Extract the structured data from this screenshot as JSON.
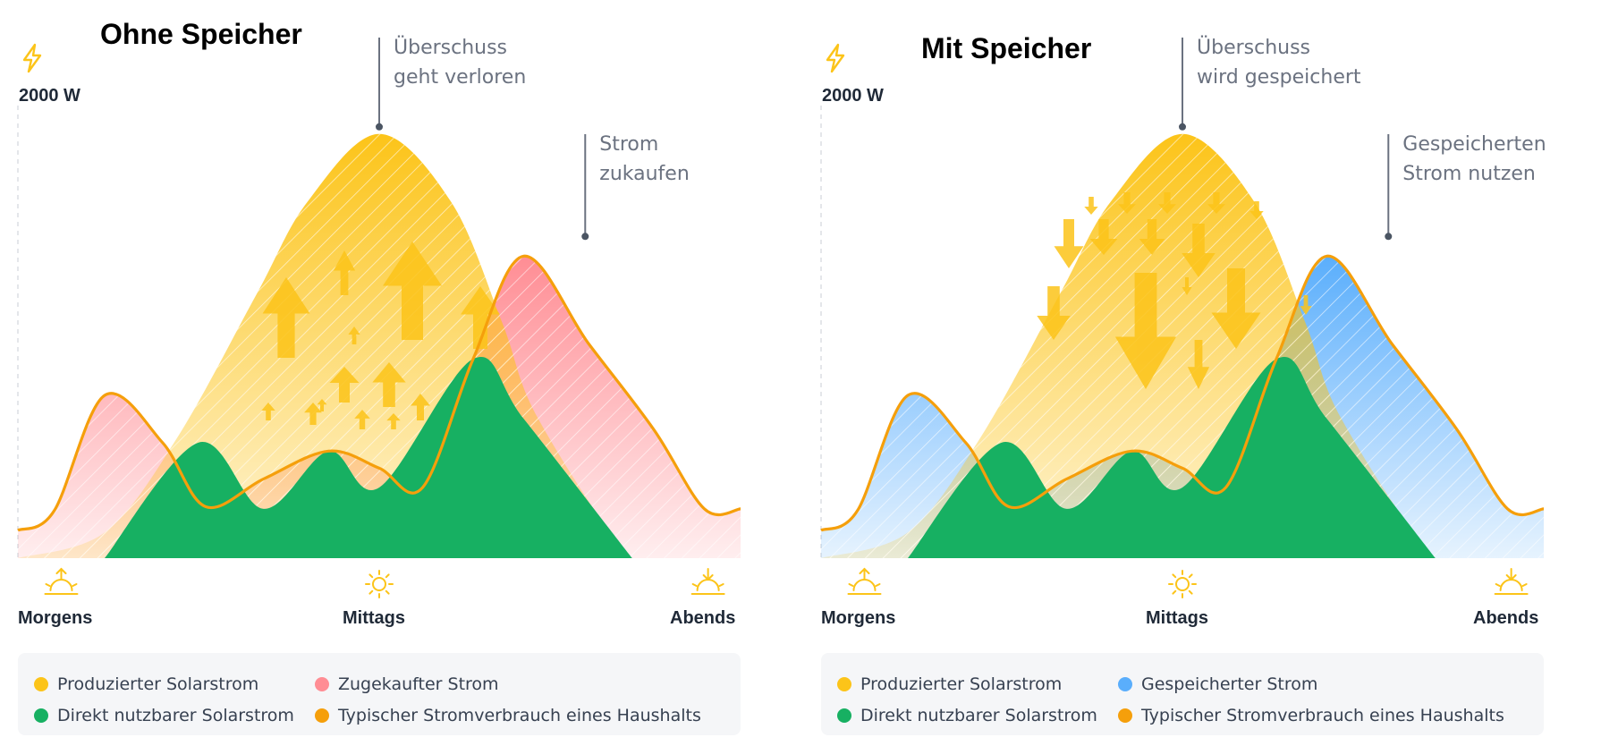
{
  "colors": {
    "solar": "#fcc419",
    "direct": "#17b062",
    "bought": "#ff8d94",
    "stored": "#5aaefc",
    "consumption": "#f59f0b",
    "annotation": "#6b7280"
  },
  "chart_data": [
    {
      "type": "area",
      "title": "Ohne Speicher",
      "ylabel": "2000 W",
      "y_max_label": "2000 W",
      "ylim": [
        0,
        2000
      ],
      "x_labels": [
        "Morgens",
        "Mittags",
        "Abends"
      ],
      "icons": [
        "sunrise-icon",
        "sun-icon",
        "sunset-icon"
      ],
      "annotations": [
        {
          "lines": [
            "Überschuss",
            "geht verloren"
          ]
        },
        {
          "lines": [
            "Strom",
            "zukaufen"
          ]
        }
      ],
      "surplus_arrow_direction": "up",
      "legend": [
        {
          "label": "Produzierter Solarstrom",
          "color": "#fcc419"
        },
        {
          "label": "Zugekaufter Strom",
          "color": "#ff8d94"
        },
        {
          "label": "Direkt nutzbarer Solarstrom",
          "color": "#17b062"
        },
        {
          "label": "Typischer Stromverbrauch eines Haushalts",
          "color": "#f59f0b"
        }
      ],
      "series": [
        {
          "name": "Produzierter Solarstrom",
          "x": [
            0,
            0.12,
            0.22,
            0.33,
            0.4,
            0.5,
            0.6,
            0.67,
            0.72,
            0.85,
            0.92
          ],
          "values": [
            0,
            120,
            560,
            1230,
            1660,
            1980,
            1660,
            1100,
            650,
            0,
            0
          ]
        },
        {
          "name": "Typischer Stromverbrauch eines Haushalts",
          "x": [
            0,
            0.05,
            0.12,
            0.2,
            0.26,
            0.34,
            0.43,
            0.5,
            0.56,
            0.63,
            0.7,
            0.79,
            0.88,
            0.95,
            1
          ],
          "values": [
            130,
            220,
            760,
            540,
            240,
            370,
            500,
            420,
            330,
            930,
            1410,
            1000,
            600,
            230,
            230
          ]
        },
        {
          "name": "Direkt nutzbarer Solarstrom",
          "x": [
            0.12,
            0.25,
            0.34,
            0.43,
            0.5,
            0.63,
            0.7,
            0.85
          ],
          "values": [
            0,
            540,
            230,
            500,
            330,
            930,
            650,
            0
          ]
        },
        {
          "name": "Zugekaufter Strom",
          "x": [
            0,
            0.12,
            0.22,
            0.7,
            0.79,
            0.95,
            1
          ],
          "values": [
            130,
            760,
            540,
            1410,
            1000,
            230,
            230
          ]
        }
      ]
    },
    {
      "type": "area",
      "title": "Mit Speicher",
      "ylabel": "2000 W",
      "y_max_label": "2000 W",
      "ylim": [
        0,
        2000
      ],
      "x_labels": [
        "Morgens",
        "Mittags",
        "Abends"
      ],
      "icons": [
        "sunrise-icon",
        "sun-icon",
        "sunset-icon"
      ],
      "annotations": [
        {
          "lines": [
            "Überschuss",
            "wird gespeichert"
          ]
        },
        {
          "lines": [
            "Gespeicherten",
            "Strom nutzen"
          ]
        }
      ],
      "surplus_arrow_direction": "down",
      "legend": [
        {
          "label": "Produzierter Solarstrom",
          "color": "#fcc419"
        },
        {
          "label": "Gespeicherter Strom",
          "color": "#5aaefc"
        },
        {
          "label": "Direkt nutzbarer Solarstrom",
          "color": "#17b062"
        },
        {
          "label": "Typischer Stromverbrauch eines Haushalts",
          "color": "#f59f0b"
        }
      ],
      "series": [
        {
          "name": "Produzierter Solarstrom",
          "x": [
            0,
            0.12,
            0.22,
            0.33,
            0.4,
            0.5,
            0.6,
            0.67,
            0.72,
            0.85,
            0.92
          ],
          "values": [
            0,
            120,
            560,
            1230,
            1660,
            1980,
            1660,
            1100,
            650,
            0,
            0
          ]
        },
        {
          "name": "Typischer Stromverbrauch eines Haushalts",
          "x": [
            0,
            0.05,
            0.12,
            0.2,
            0.26,
            0.34,
            0.43,
            0.5,
            0.56,
            0.63,
            0.7,
            0.79,
            0.88,
            0.95,
            1
          ],
          "values": [
            130,
            220,
            760,
            540,
            240,
            370,
            500,
            420,
            330,
            930,
            1410,
            1000,
            600,
            230,
            230
          ]
        },
        {
          "name": "Direkt nutzbarer Solarstrom",
          "x": [
            0.12,
            0.25,
            0.34,
            0.43,
            0.5,
            0.63,
            0.7,
            0.85
          ],
          "values": [
            0,
            540,
            230,
            500,
            330,
            930,
            650,
            0
          ]
        },
        {
          "name": "Gespeicherter Strom",
          "x": [
            0,
            0.12,
            0.22,
            0.7,
            0.79,
            0.95,
            1
          ],
          "values": [
            130,
            760,
            540,
            1410,
            1000,
            230,
            230
          ]
        }
      ]
    }
  ]
}
